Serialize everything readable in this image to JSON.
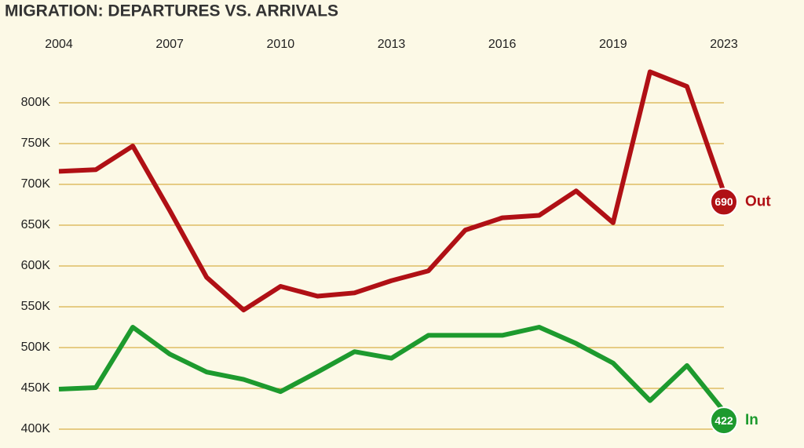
{
  "chart_data": {
    "type": "line",
    "title": "MIGRATION: DEPARTURES VS. ARRIVALS",
    "categories": [
      "2004",
      null,
      null,
      "2007",
      null,
      null,
      "2010",
      null,
      null,
      "2013",
      null,
      null,
      "2016",
      null,
      null,
      "2019",
      null,
      null,
      "2023"
    ],
    "series": [
      {
        "name": "Out",
        "color": "#b01015",
        "values": [
          716000,
          718000,
          747000,
          668000,
          586000,
          546000,
          575000,
          563000,
          567000,
          582000,
          594000,
          644000,
          659000,
          662000,
          692000,
          653000,
          838000,
          820000,
          690000
        ],
        "value_labels": [
          null,
          null,
          null,
          null,
          null,
          null,
          null,
          null,
          null,
          null,
          null,
          null,
          null,
          null,
          null,
          null,
          null,
          null,
          "690"
        ]
      },
      {
        "name": "In",
        "color": "#1d9a2e",
        "values": [
          449000,
          451000,
          525000,
          492000,
          470000,
          461000,
          446000,
          470000,
          495000,
          487000,
          515000,
          515000,
          515000,
          525000,
          505000,
          481000,
          435000,
          478000,
          422000
        ],
        "value_labels": [
          null,
          null,
          null,
          null,
          null,
          null,
          null,
          null,
          null,
          null,
          null,
          null,
          null,
          null,
          null,
          null,
          null,
          null,
          "422"
        ]
      }
    ],
    "ylim": [
      400000,
      850000
    ],
    "yticks": [
      {
        "value": 400000,
        "label": "400K"
      },
      {
        "value": 450000,
        "label": "450K"
      },
      {
        "value": 500000,
        "label": "500K"
      },
      {
        "value": 550000,
        "label": "550K"
      },
      {
        "value": 600000,
        "label": "600K"
      },
      {
        "value": 650000,
        "label": "650K"
      },
      {
        "value": 700000,
        "label": "700K"
      },
      {
        "value": 750000,
        "label": "750K"
      },
      {
        "value": 800000,
        "label": "800K"
      }
    ],
    "grid": true
  }
}
